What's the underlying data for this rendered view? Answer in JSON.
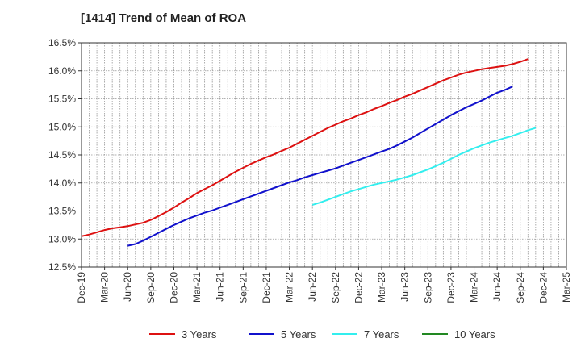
{
  "chart_data": {
    "type": "line",
    "title": "[1414]  Trend of Mean of ROA",
    "xlabel": "",
    "ylabel": "",
    "ylim": [
      12.5,
      16.5
    ],
    "yticks": [
      "12.5%",
      "13.0%",
      "13.5%",
      "14.0%",
      "14.5%",
      "15.0%",
      "15.5%",
      "16.0%",
      "16.5%"
    ],
    "ytick_values": [
      12.5,
      13.0,
      13.5,
      14.0,
      14.5,
      15.0,
      15.5,
      16.0,
      16.5
    ],
    "x_tick_labels": [
      "Dec-19",
      "Mar-20",
      "Jun-20",
      "Sep-20",
      "Dec-20",
      "Mar-21",
      "Jun-21",
      "Sep-21",
      "Dec-21",
      "Mar-22",
      "Jun-22",
      "Sep-22",
      "Dec-22",
      "Mar-23",
      "Jun-23",
      "Sep-23",
      "Dec-23",
      "Mar-24",
      "Jun-24",
      "Sep-24",
      "Dec-24",
      "Mar-25"
    ],
    "x_range_months": [
      "Dec-19",
      "Mar-25"
    ],
    "grid": true,
    "legend_position": "bottom",
    "series": [
      {
        "name": "3 Years",
        "color": "#dd1111",
        "start": "Dec-19",
        "values": [
          13.05,
          13.08,
          13.12,
          13.16,
          13.19,
          13.21,
          13.23,
          13.26,
          13.29,
          13.34,
          13.41,
          13.48,
          13.56,
          13.65,
          13.73,
          13.82,
          13.89,
          13.96,
          14.04,
          14.12,
          14.2,
          14.27,
          14.34,
          14.4,
          14.46,
          14.51,
          14.57,
          14.63,
          14.7,
          14.77,
          14.84,
          14.91,
          14.98,
          15.04,
          15.1,
          15.15,
          15.21,
          15.26,
          15.32,
          15.37,
          15.43,
          15.48,
          15.54,
          15.59,
          15.65,
          15.71,
          15.77,
          15.83,
          15.88,
          15.93,
          15.97,
          16.0,
          16.03,
          16.05,
          16.07,
          16.09,
          16.12,
          16.16,
          16.21
        ]
      },
      {
        "name": "5 Years",
        "color": "#1111cc",
        "start": "Jun-20",
        "values": [
          12.88,
          12.91,
          12.97,
          13.04,
          13.11,
          13.18,
          13.25,
          13.31,
          13.37,
          13.42,
          13.47,
          13.51,
          13.56,
          13.61,
          13.66,
          13.71,
          13.76,
          13.81,
          13.86,
          13.91,
          13.96,
          14.01,
          14.05,
          14.1,
          14.14,
          14.18,
          14.22,
          14.26,
          14.31,
          14.36,
          14.41,
          14.46,
          14.51,
          14.56,
          14.61,
          14.67,
          14.74,
          14.81,
          14.89,
          14.97,
          15.05,
          15.13,
          15.21,
          15.28,
          15.35,
          15.41,
          15.47,
          15.54,
          15.61,
          15.66,
          15.72
        ]
      },
      {
        "name": "7 Years",
        "color": "#33eeee",
        "start": "Jun-22",
        "values": [
          13.61,
          13.65,
          13.7,
          13.75,
          13.8,
          13.85,
          13.89,
          13.93,
          13.97,
          14.0,
          14.03,
          14.06,
          14.1,
          14.14,
          14.19,
          14.24,
          14.3,
          14.36,
          14.43,
          14.5,
          14.56,
          14.62,
          14.67,
          14.72,
          14.76,
          14.8,
          14.84,
          14.89,
          14.94,
          14.98
        ]
      },
      {
        "name": "10 Years",
        "color": "#228822",
        "start": "",
        "values": []
      }
    ]
  }
}
